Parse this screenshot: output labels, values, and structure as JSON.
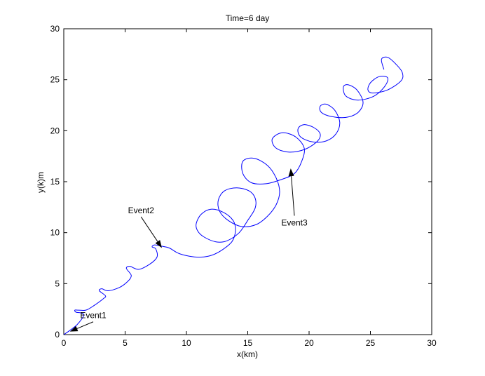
{
  "chart_data": {
    "type": "line",
    "title": "Time=6 day",
    "xlabel": "x(km)",
    "ylabel": "y(k)m",
    "xlim": [
      0,
      30
    ],
    "ylim": [
      0,
      30
    ],
    "xticks": [
      0,
      5,
      10,
      15,
      20,
      25,
      30
    ],
    "yticks": [
      0,
      5,
      10,
      15,
      20,
      25,
      30
    ],
    "grid": false,
    "series": [
      {
        "color": "#0000ff",
        "x": [
          0.0,
          0.6,
          1.1,
          1.6,
          1.5,
          1.0,
          0.9,
          1.2,
          1.8,
          2.4,
          3.2,
          3.4,
          2.9,
          3.1,
          3.6,
          4.5,
          5.2,
          5.5,
          5.1,
          5.4,
          6.1,
          7.0,
          7.6,
          7.5,
          7.2,
          7.4,
          7.9,
          8.6,
          9.3,
          10.2,
          11.2,
          12.1,
          12.9,
          13.7,
          14.0,
          13.8,
          13.0,
          12.0,
          11.2,
          10.8,
          10.9,
          11.4,
          12.4,
          13.3,
          14.3,
          15.0,
          15.6,
          15.6,
          15.1,
          14.1,
          13.1,
          12.6,
          12.7,
          13.4,
          14.5,
          15.7,
          16.6,
          17.3,
          17.6,
          17.3,
          16.6,
          15.5,
          14.6,
          14.6,
          15.3,
          16.5,
          17.7,
          18.8,
          19.4,
          19.6,
          18.9,
          17.8,
          17.0,
          17.3,
          18.4,
          19.7,
          20.7,
          20.9,
          20.4,
          19.6,
          19.1,
          19.3,
          20.3,
          21.4,
          22.2,
          22.5,
          22.1,
          21.4,
          20.9,
          21.0,
          21.8,
          23.0,
          24.0,
          24.4,
          23.9,
          23.2,
          22.8,
          23.0,
          24.0,
          25.3,
          26.2,
          26.4,
          25.7,
          25.0,
          24.8,
          25.2,
          26.4,
          27.5,
          27.6,
          27.1,
          26.4,
          25.9,
          26.1
        ],
        "y": [
          0.0,
          0.5,
          1.0,
          1.8,
          2.1,
          2.2,
          2.4,
          2.4,
          2.4,
          2.8,
          3.5,
          3.8,
          4.3,
          4.5,
          4.3,
          4.6,
          5.2,
          5.8,
          6.5,
          6.7,
          6.4,
          6.9,
          7.6,
          8.4,
          8.6,
          8.8,
          8.7,
          8.5,
          8.0,
          7.7,
          7.6,
          7.8,
          8.3,
          9.1,
          10.2,
          11.2,
          12.0,
          12.3,
          11.8,
          10.9,
          10.2,
          9.6,
          9.1,
          9.2,
          10.0,
          11.2,
          12.4,
          13.4,
          14.1,
          14.4,
          14.1,
          13.2,
          12.1,
          11.2,
          10.6,
          10.8,
          11.6,
          12.7,
          14.0,
          15.4,
          16.6,
          17.3,
          17.0,
          15.8,
          14.9,
          14.8,
          15.2,
          15.8,
          17.0,
          18.3,
          19.4,
          19.8,
          19.2,
          18.3,
          17.9,
          18.2,
          19.0,
          19.7,
          20.3,
          20.6,
          20.2,
          19.4,
          18.9,
          19.0,
          19.7,
          20.8,
          22.0,
          22.6,
          22.4,
          21.8,
          21.4,
          21.3,
          21.8,
          22.8,
          24.0,
          24.5,
          24.3,
          23.4,
          23.0,
          23.4,
          24.4,
          25.2,
          25.3,
          24.7,
          24.0,
          23.7,
          24.0,
          24.9,
          25.7,
          26.5,
          27.2,
          27.0,
          26.0
        ]
      }
    ],
    "annotations": [
      {
        "text": "Event1",
        "text_x": 2.4,
        "text_y": 1.6,
        "arrow_x": 0.5,
        "arrow_y": 0.3
      },
      {
        "text": "Event2",
        "text_x": 6.3,
        "text_y": 11.9,
        "arrow_x": 8.0,
        "arrow_y": 8.5
      },
      {
        "text": "Event3",
        "text_x": 18.8,
        "text_y": 10.7,
        "arrow_x": 18.5,
        "arrow_y": 16.3
      }
    ]
  }
}
